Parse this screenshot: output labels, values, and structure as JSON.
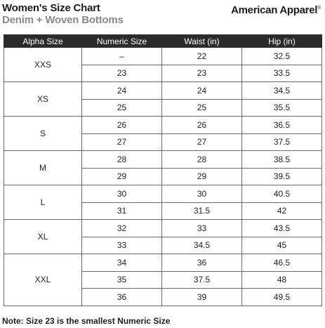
{
  "header": {
    "title": "Women's Size Chart",
    "subtitle": "Denim + Woven Bottoms",
    "brand": "American Apparel",
    "brand_mark": "®"
  },
  "table": {
    "columns": [
      "Alpha Size",
      "Numeric Size",
      "Waist (in)",
      "Hip (in)"
    ],
    "groups": [
      {
        "alpha": "XXS",
        "rows": [
          [
            "–",
            "22",
            "32.5"
          ],
          [
            "23",
            "23",
            "33.5"
          ]
        ]
      },
      {
        "alpha": "XS",
        "rows": [
          [
            "24",
            "24",
            "34.5"
          ],
          [
            "25",
            "25",
            "35.5"
          ]
        ]
      },
      {
        "alpha": "S",
        "rows": [
          [
            "26",
            "26",
            "36.5"
          ],
          [
            "27",
            "27",
            "37.5"
          ]
        ]
      },
      {
        "alpha": "M",
        "rows": [
          [
            "28",
            "28",
            "38.5"
          ],
          [
            "29",
            "29",
            "39.5"
          ]
        ]
      },
      {
        "alpha": "L",
        "rows": [
          [
            "30",
            "30",
            "40.5"
          ],
          [
            "31",
            "31.5",
            "42"
          ]
        ]
      },
      {
        "alpha": "XL",
        "rows": [
          [
            "32",
            "33",
            "43.5"
          ],
          [
            "33",
            "34.5",
            "45"
          ]
        ]
      },
      {
        "alpha": "XXL",
        "rows": [
          [
            "34",
            "36",
            "46.5"
          ],
          [
            "35",
            "37.5",
            "48"
          ],
          [
            "36",
            "39",
            "49.5"
          ]
        ]
      }
    ]
  },
  "footer": {
    "note": "Note: Size 23 is the smallest Numeric Size"
  }
}
